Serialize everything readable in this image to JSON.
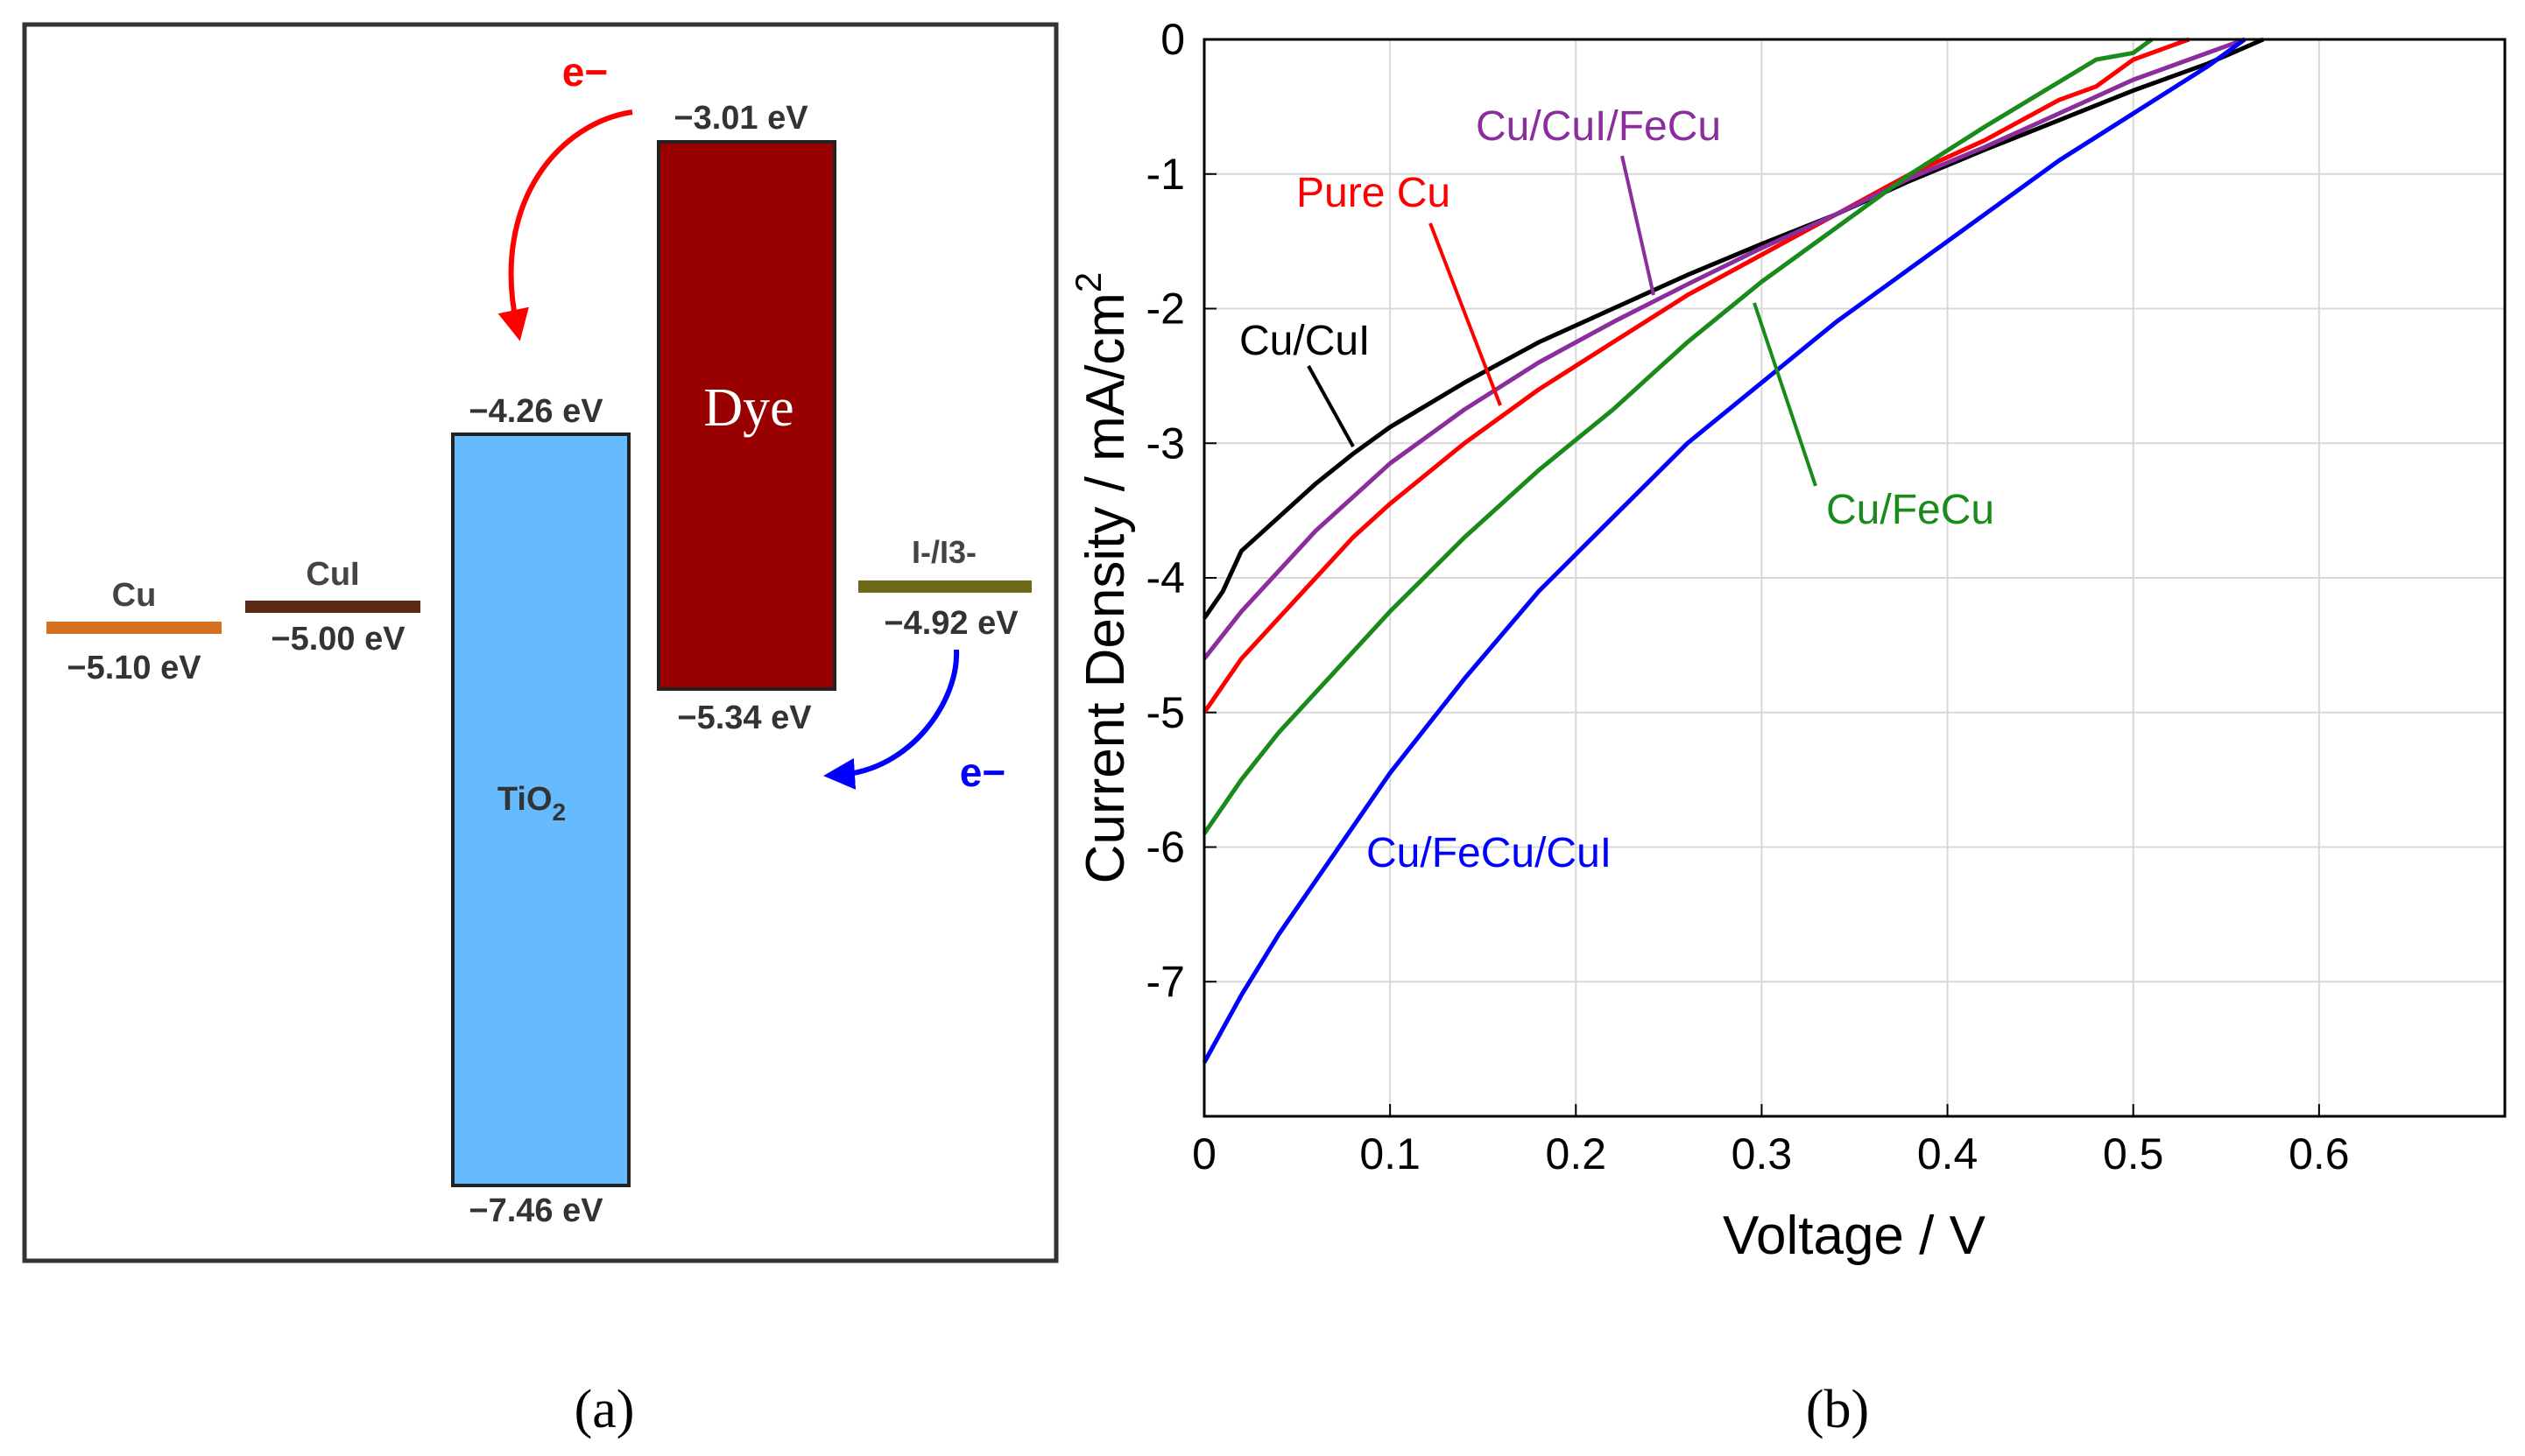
{
  "panel_a": {
    "caption": "(a)",
    "colors": {
      "cu": "#d4701f",
      "cui": "#5c2a14",
      "i3": "#6e6a1a",
      "dye": "#990000",
      "tio2": "#66bbff",
      "electron_red": "#ff0000",
      "electron_blue": "#0000ff"
    },
    "levels": [
      {
        "name": "Cu",
        "value": "−5.10 eV"
      },
      {
        "name": "CuI",
        "value": "−5.00 eV"
      },
      {
        "name": "I-/I3-",
        "value": "−4.92 eV"
      }
    ],
    "dye": {
      "label": "Dye",
      "top": "−3.01 eV",
      "bottom": "−5.34 eV"
    },
    "tio2": {
      "label_main": "TiO",
      "label_sub": "2",
      "top": "−4.26 eV",
      "bottom": "−7.46 eV"
    },
    "electron_top": "e−",
    "electron_bottom": "e−"
  },
  "panel_b": {
    "caption": "(b)"
  },
  "chart_data": {
    "type": "line",
    "title": "",
    "xlabel": "Voltage / V",
    "ylabel_main": "Current Density / mA/cm",
    "ylabel_sup": "2",
    "xlim": [
      0,
      0.7
    ],
    "ylim": [
      -8,
      0
    ],
    "xticks": [
      0,
      0.1,
      0.2,
      0.3,
      0.4,
      0.5,
      0.6
    ],
    "xtick_labels": [
      "0",
      "0.1",
      "0.2",
      "0.3",
      "0.4",
      "0.5",
      "0.6"
    ],
    "yticks": [
      0,
      -1,
      -2,
      -3,
      -4,
      -5,
      -6,
      -7
    ],
    "ytick_labels": [
      "0",
      "-1",
      "-2",
      "-3",
      "-4",
      "-5",
      "-6",
      "-7"
    ],
    "grid": true,
    "series": [
      {
        "name": "Pure Cu",
        "color": "#ff0000",
        "points": [
          [
            0,
            -5.0
          ],
          [
            0.02,
            -4.6
          ],
          [
            0.04,
            -4.3
          ],
          [
            0.06,
            -4.0
          ],
          [
            0.08,
            -3.7
          ],
          [
            0.1,
            -3.45
          ],
          [
            0.14,
            -3.0
          ],
          [
            0.18,
            -2.6
          ],
          [
            0.22,
            -2.25
          ],
          [
            0.26,
            -1.9
          ],
          [
            0.3,
            -1.6
          ],
          [
            0.34,
            -1.3
          ],
          [
            0.38,
            -1.0
          ],
          [
            0.42,
            -0.75
          ],
          [
            0.46,
            -0.45
          ],
          [
            0.48,
            -0.35
          ],
          [
            0.5,
            -0.15
          ],
          [
            0.52,
            -0.05
          ],
          [
            0.53,
            0
          ]
        ]
      },
      {
        "name": "Cu/CuI",
        "color": "#000000",
        "points": [
          [
            0,
            -4.3
          ],
          [
            0.01,
            -4.1
          ],
          [
            0.02,
            -3.8
          ],
          [
            0.04,
            -3.55
          ],
          [
            0.06,
            -3.3
          ],
          [
            0.08,
            -3.08
          ],
          [
            0.1,
            -2.88
          ],
          [
            0.14,
            -2.55
          ],
          [
            0.18,
            -2.25
          ],
          [
            0.22,
            -2.0
          ],
          [
            0.26,
            -1.75
          ],
          [
            0.3,
            -1.52
          ],
          [
            0.34,
            -1.3
          ],
          [
            0.38,
            -1.05
          ],
          [
            0.42,
            -0.82
          ],
          [
            0.46,
            -0.6
          ],
          [
            0.5,
            -0.38
          ],
          [
            0.54,
            -0.18
          ],
          [
            0.57,
            0
          ]
        ]
      },
      {
        "name": "Cu/CuI/FeCu",
        "color": "#8b2d9c",
        "points": [
          [
            0,
            -4.6
          ],
          [
            0.02,
            -4.25
          ],
          [
            0.04,
            -3.95
          ],
          [
            0.06,
            -3.65
          ],
          [
            0.08,
            -3.4
          ],
          [
            0.1,
            -3.15
          ],
          [
            0.14,
            -2.75
          ],
          [
            0.18,
            -2.4
          ],
          [
            0.22,
            -2.1
          ],
          [
            0.26,
            -1.82
          ],
          [
            0.3,
            -1.55
          ],
          [
            0.34,
            -1.3
          ],
          [
            0.38,
            -1.03
          ],
          [
            0.42,
            -0.8
          ],
          [
            0.46,
            -0.55
          ],
          [
            0.5,
            -0.3
          ],
          [
            0.54,
            -0.1
          ],
          [
            0.56,
            0
          ]
        ]
      },
      {
        "name": "Cu/FeCu",
        "color": "#1a8a1a",
        "points": [
          [
            0,
            -5.9
          ],
          [
            0.02,
            -5.5
          ],
          [
            0.04,
            -5.15
          ],
          [
            0.06,
            -4.85
          ],
          [
            0.08,
            -4.55
          ],
          [
            0.1,
            -4.25
          ],
          [
            0.14,
            -3.7
          ],
          [
            0.18,
            -3.2
          ],
          [
            0.22,
            -2.75
          ],
          [
            0.26,
            -2.25
          ],
          [
            0.3,
            -1.8
          ],
          [
            0.34,
            -1.4
          ],
          [
            0.38,
            -1.0
          ],
          [
            0.42,
            -0.65
          ],
          [
            0.45,
            -0.4
          ],
          [
            0.48,
            -0.15
          ],
          [
            0.5,
            -0.1
          ],
          [
            0.51,
            0
          ]
        ]
      },
      {
        "name": "Cu/FeCu/CuI",
        "color": "#0000ff",
        "points": [
          [
            0,
            -7.6
          ],
          [
            0.02,
            -7.1
          ],
          [
            0.04,
            -6.65
          ],
          [
            0.06,
            -6.25
          ],
          [
            0.08,
            -5.85
          ],
          [
            0.1,
            -5.45
          ],
          [
            0.14,
            -4.75
          ],
          [
            0.18,
            -4.1
          ],
          [
            0.22,
            -3.55
          ],
          [
            0.26,
            -3.0
          ],
          [
            0.3,
            -2.55
          ],
          [
            0.34,
            -2.1
          ],
          [
            0.38,
            -1.7
          ],
          [
            0.42,
            -1.3
          ],
          [
            0.46,
            -0.9
          ],
          [
            0.5,
            -0.55
          ],
          [
            0.54,
            -0.2
          ],
          [
            0.56,
            0
          ]
        ]
      }
    ],
    "annotations": [
      {
        "text": "Pure Cu",
        "color": "#ff0000"
      },
      {
        "text": "Cu/CuI",
        "color": "#000000"
      },
      {
        "text": "Cu/CuI/FeCu",
        "color": "#8b2d9c"
      },
      {
        "text": "Cu/FeCu",
        "color": "#1a8a1a"
      },
      {
        "text": "Cu/FeCu/CuI",
        "color": "#0000ff"
      }
    ]
  }
}
